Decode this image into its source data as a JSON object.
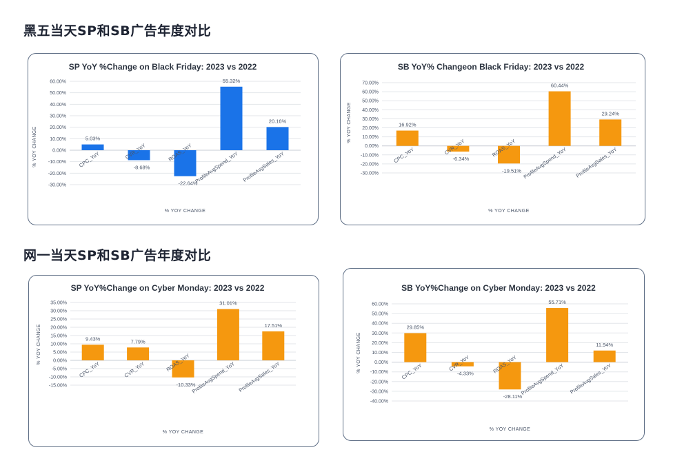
{
  "sections": {
    "black_friday_title": "黑五当天SP和SB广告年度对比",
    "cyber_monday_title": "网一当天SP和SB广告年度对比"
  },
  "chart_data": [
    {
      "type": "bar",
      "title": "SP YoY %Change on Black Friday: 2023 vs 2022",
      "xlabel": "% YOY CHANGE",
      "ylabel": "% YOY CHANGE",
      "categories": [
        "CPC_YoY",
        "CVR_YoY",
        "ROAS_YoY",
        "ProfileAvgSpend_YoY",
        "ProfileAvgSales_YoY"
      ],
      "values": [
        5.03,
        -8.68,
        -22.64,
        55.32,
        20.16
      ],
      "data_labels": [
        "5.03%",
        "-8.68%",
        "-22.64%",
        "55.32%",
        "20.16%"
      ],
      "ylim": [
        -30,
        60
      ],
      "yticks": [
        60,
        50,
        40,
        30,
        20,
        10,
        0,
        -10,
        -20,
        -30
      ],
      "ytick_labels": [
        "60.00%",
        "50.00%",
        "40.00%",
        "30.00%",
        "20.00%",
        "10.00%",
        "0.00%",
        "-10.00%",
        "-20.00%",
        "-30.00%"
      ],
      "color": "#1a73e8",
      "grid": true
    },
    {
      "type": "bar",
      "title": "SB YoY% Changeon Black Friday: 2023 vs 2022",
      "xlabel": "% YOY CHANGE",
      "ylabel": "% YOY CHANGE",
      "categories": [
        "CPC_YoY",
        "CVR_YoY",
        "ROAS_YoY",
        "ProfileAvgSpend_YoY",
        "ProfileAvgSales_YoY"
      ],
      "values": [
        16.92,
        -6.34,
        -19.51,
        60.44,
        29.24
      ],
      "data_labels": [
        "16.92%",
        "-6.34%",
        "-19.51%",
        "60.44%",
        "29.24%"
      ],
      "ylim": [
        -30,
        70
      ],
      "yticks": [
        70,
        60,
        50,
        40,
        30,
        20,
        10,
        0,
        -10,
        -20,
        -30
      ],
      "ytick_labels": [
        "70.00%",
        "60.00%",
        "50.00%",
        "40.00%",
        "30.00%",
        "20.00%",
        "10.00%",
        "0.00%",
        "-10.00%",
        "-20.00%",
        "-30.00%"
      ],
      "color": "#f5980f",
      "grid": true
    },
    {
      "type": "bar",
      "title": "SP YoY%Change on  Cyber Monday: 2023 vs 2022",
      "xlabel": "% YOY CHANGE",
      "ylabel": "% YOY CHANGE",
      "categories": [
        "CPC_YoY",
        "CVR_YoY",
        "ROAS_YoY",
        "ProfileAvgSpend_YoY",
        "ProfileAvgSales_YoY"
      ],
      "values": [
        9.43,
        7.79,
        -10.33,
        31.01,
        17.51
      ],
      "data_labels": [
        "9.43%",
        "7.79%",
        "-10.33%",
        "31.01%",
        "17.51%"
      ],
      "ylim": [
        -15,
        35
      ],
      "yticks": [
        35,
        30,
        25,
        20,
        15,
        10,
        5,
        0,
        -5,
        -10,
        -15
      ],
      "ytick_labels": [
        "35.00%",
        "30.00%",
        "25.00%",
        "20.00%",
        "15.00%",
        "10.00%",
        "5.00%",
        "0.00%",
        "-5.00%",
        "-10.00%",
        "-15.00%"
      ],
      "color": "#f5980f",
      "grid": true
    },
    {
      "type": "bar",
      "title": "SB YoY%Change on  Cyber Monday: 2023 vs 2022",
      "xlabel": "% YOY CHANGE",
      "ylabel": "% YOY CHANGE",
      "categories": [
        "CPC_YoY",
        "CVR_YoY",
        "ROAS_YoY",
        "ProfileAvgSpend_YoY",
        "ProfileAvgSales_YoY"
      ],
      "values": [
        29.85,
        -4.33,
        -28.11,
        55.71,
        11.94
      ],
      "data_labels": [
        "29.85%",
        "-4.33%",
        "-28.11%",
        "55.71%",
        "11.94%"
      ],
      "ylim": [
        -40,
        60
      ],
      "yticks": [
        60,
        50,
        40,
        30,
        20,
        10,
        0,
        -10,
        -20,
        -30,
        -40
      ],
      "ytick_labels": [
        "60.00%",
        "50.00%",
        "40.00%",
        "30.00%",
        "20.00%",
        "10.00%",
        "0.00%",
        "-10.00%",
        "-20.00%",
        "-30.00%",
        "-40.00%"
      ],
      "color": "#f5980f",
      "grid": true
    }
  ]
}
